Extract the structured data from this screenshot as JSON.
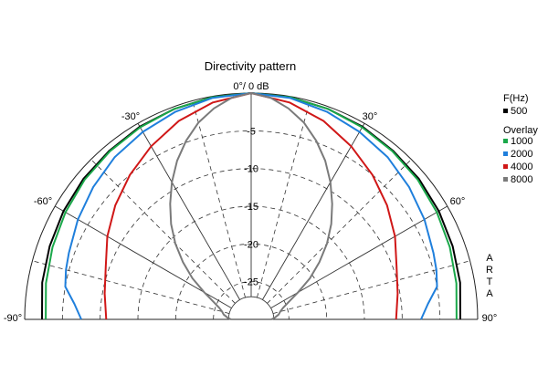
{
  "chart_data": {
    "type": "polar-line",
    "title": "Directivity pattern",
    "top_label": "0°/ 0 dB",
    "angle_ticks": [
      {
        "angle": -90,
        "label": "-90°"
      },
      {
        "angle": -60,
        "label": "-60°"
      },
      {
        "angle": -30,
        "label": "-30°"
      },
      {
        "angle": 30,
        "label": "30°"
      },
      {
        "angle": 60,
        "label": "60°"
      },
      {
        "angle": 90,
        "label": "90°"
      }
    ],
    "db_ticks": [
      {
        "value": -5,
        "label": "-5"
      },
      {
        "value": -10,
        "label": "-10"
      },
      {
        "value": -15,
        "label": "-15"
      },
      {
        "value": -20,
        "label": "-20"
      },
      {
        "value": -25,
        "label": "-25"
      }
    ],
    "r_range_db": [
      -30,
      0
    ],
    "angle_range_deg": [
      -90,
      90
    ],
    "grid": true,
    "legend": {
      "position": "right",
      "header": "F(Hz)",
      "overlay_header": "Overlay",
      "entries": [
        {
          "name": "500",
          "color": "#000000"
        },
        {
          "name": "1000",
          "color": "#1aa84a"
        },
        {
          "name": "2000",
          "color": "#1f7fdc"
        },
        {
          "name": "4000",
          "color": "#d01717"
        },
        {
          "name": "8000",
          "color": "#7a7a7a"
        }
      ]
    },
    "watermark": [
      "A",
      "R",
      "T",
      "A"
    ],
    "series": [
      {
        "name": "500",
        "color": "#000000",
        "angles": [
          0,
          10,
          20,
          30,
          40,
          50,
          60,
          70,
          80,
          90
        ],
        "db": [
          0,
          -0.1,
          -0.3,
          -0.5,
          -0.8,
          -1.0,
          -1.3,
          -1.6,
          -1.9,
          -2.3
        ]
      },
      {
        "name": "1000",
        "color": "#1aa84a",
        "angles": [
          0,
          10,
          20,
          30,
          40,
          50,
          60,
          70,
          80,
          90
        ],
        "db": [
          0,
          -0.1,
          -0.3,
          -0.6,
          -0.9,
          -1.2,
          -1.6,
          -2.0,
          -2.4,
          -2.8
        ]
      },
      {
        "name": "2000",
        "color": "#1f7fdc",
        "angles": [
          0,
          10,
          20,
          30,
          40,
          50,
          60,
          70,
          75,
          80,
          85,
          90
        ],
        "db": [
          0,
          -0.2,
          -0.7,
          -1.3,
          -1.9,
          -2.7,
          -3.5,
          -4.3,
          -4.6,
          -5.0,
          -6.5,
          -7.5
        ]
      },
      {
        "name": "4000",
        "color": "#d01717",
        "angles": [
          0,
          10,
          20,
          30,
          40,
          50,
          60,
          70,
          80,
          90
        ],
        "db": [
          0,
          -0.8,
          -2.0,
          -3.5,
          -5.0,
          -6.5,
          -8.0,
          -9.5,
          -10.3,
          -10.8
        ]
      },
      {
        "name": "8000",
        "color": "#7a7a7a",
        "angles": [
          0,
          5,
          10,
          15,
          20,
          25,
          30,
          35,
          40,
          45,
          50,
          55,
          60,
          65,
          70,
          75,
          80,
          85,
          90
        ],
        "db": [
          0,
          -0.5,
          -1.6,
          -3.0,
          -4.8,
          -6.8,
          -9.0,
          -11.3,
          -13.5,
          -15.8,
          -18.2,
          -20.5,
          -22.8,
          -24.5,
          -25.5,
          -26.0,
          -26.3,
          -26.8,
          -27.3
        ]
      }
    ]
  }
}
